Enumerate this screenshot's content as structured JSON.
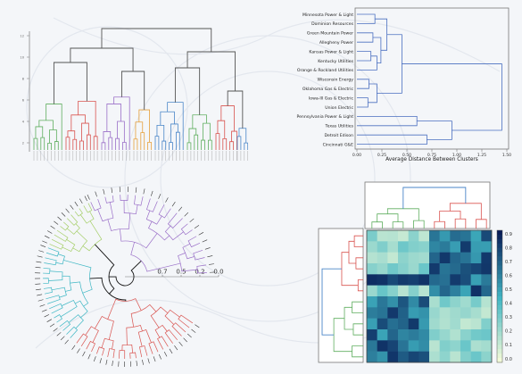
{
  "colors": {
    "background": "#f4f6f9",
    "cluster_green": "#5fae5f",
    "cluster_red": "#d9534f",
    "cluster_purple": "#9a6fc8",
    "cluster_orange": "#e6a03c",
    "cluster_blue": "#4a86c8",
    "cluster_cyan": "#3fb7c4",
    "cluster_lime": "#a6cf6a",
    "link_gray": "#555555",
    "link_black": "#111111",
    "heatmap_low": "#ffffd9",
    "heatmap_mid": "#41b6c4",
    "heatmap_high": "#081d58"
  },
  "panel_top_left": {
    "y_ticks": [
      "12",
      "10",
      "8",
      "6",
      "4",
      "2"
    ]
  },
  "panel_top_right": {
    "leaf_labels": [
      "Minnesota Power & Light",
      "Dominion Resources",
      "Green Mountain Power",
      "Allegheny Power",
      "Kansas Power & Light",
      "Kentucky Utilities",
      "Orange & Rockland Utilities",
      "Wisconsin Energy",
      "Oklahoma Gas & Electric",
      "Iowa-Ill Gas & Electric",
      "Union Electric",
      "Pennsylvania Power & Light",
      "Texas Utilities",
      "Detroit Edison",
      "Cincinnati G&E"
    ],
    "x_ticks": [
      "0.00",
      "0.25",
      "0.50",
      "0.75",
      "1.00",
      "1.25",
      "1.50"
    ],
    "x_label": "Average Distance Between Clusters"
  },
  "panel_bottom_left": {
    "radial_ticks": [
      "0.7",
      "0.5",
      "0.2",
      "0.0"
    ]
  },
  "panel_bottom_right": {
    "colorbar_ticks": [
      "0.9",
      "0.8",
      "0.7",
      "0.6",
      "0.5",
      "0.4",
      "0.3",
      "0.2",
      "0.1",
      "0.0"
    ]
  }
}
